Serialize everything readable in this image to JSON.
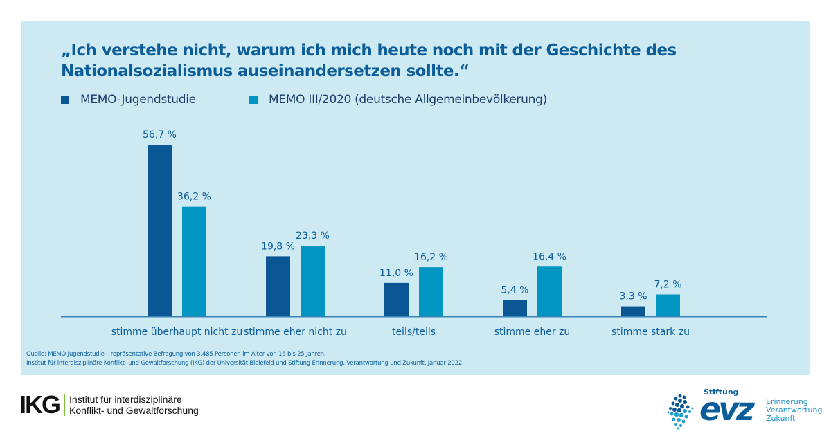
{
  "title": "„Ich verstehe nicht, warum ich mich heute noch mit der Geschichte des Nationalsozialismus auseinandersetzen sollte.“",
  "title_lines": [
    "„Ich verstehe nicht, warum ich mich heute noch mit der Geschichte des",
    "Nationalsozialismus auseinandersetzen sollte.“"
  ],
  "colors": {
    "panel_bg": "#cde9f2",
    "series_1": "#0b5795",
    "series_2": "#0096c1",
    "axis": "#3f84b8",
    "text": "#0b5d9a"
  },
  "chart_data": {
    "type": "bar",
    "title": "„Ich verstehe nicht, warum ich mich heute noch mit der Geschichte des Nationalsozialismus auseinandersetzen sollte.“",
    "xlabel": "",
    "ylabel": "",
    "ylim": [
      0,
      60
    ],
    "grid": false,
    "legend_position": "top-left",
    "categories": [
      "stimme überhaupt nicht zu",
      "stimme eher nicht zu",
      "teils/teils",
      "stimme eher zu",
      "stimme stark zu"
    ],
    "series": [
      {
        "name": "MEMO-Jugendstudie",
        "color": "#0b5795",
        "values": [
          56.7,
          19.8,
          11.0,
          5.4,
          3.3
        ],
        "labels": [
          "56,7 %",
          "19,8 %",
          "11,0 %",
          "5,4 %",
          "3,3 %"
        ]
      },
      {
        "name": "MEMO III/2020 (deutsche Allgemeinbevölkerung)",
        "color": "#0096c1",
        "values": [
          36.2,
          23.3,
          16.2,
          16.4,
          7.2
        ],
        "labels": [
          "36,2 %",
          "23,3 %",
          "16,2 %",
          "16,4 %",
          "7,2 %"
        ]
      }
    ]
  },
  "legend": [
    {
      "label": "MEMO-Jugendstudie",
      "color": "#0b5795"
    },
    {
      "label": "MEMO III/2020 (deutsche Allgemeinbevölkerung)",
      "color": "#0096c1"
    }
  ],
  "source": {
    "line1": "Quelle: MEMO Jugendstudie – repräsentative Befragung von 3.485 Personen im Alter von 16 bis 25 Jahren.",
    "line2": "Institut für interdisziplinäre Konflikt- und Gewaltforschung (IKG) der Universität Bielefeld und Stiftung Erinnerung, Verantwortung und Zukunft, Januar 2022."
  },
  "logos": {
    "ikg": {
      "mark": "IKG",
      "line1": "Institut für interdisziplinäre",
      "line2": "Konflikt- und Gewaltforschung"
    },
    "evz": {
      "stiftung": "Stiftung",
      "mark": "evz",
      "line1": "Erinnerung",
      "line2": "Verantwortung",
      "line3": "Zukunft"
    }
  }
}
